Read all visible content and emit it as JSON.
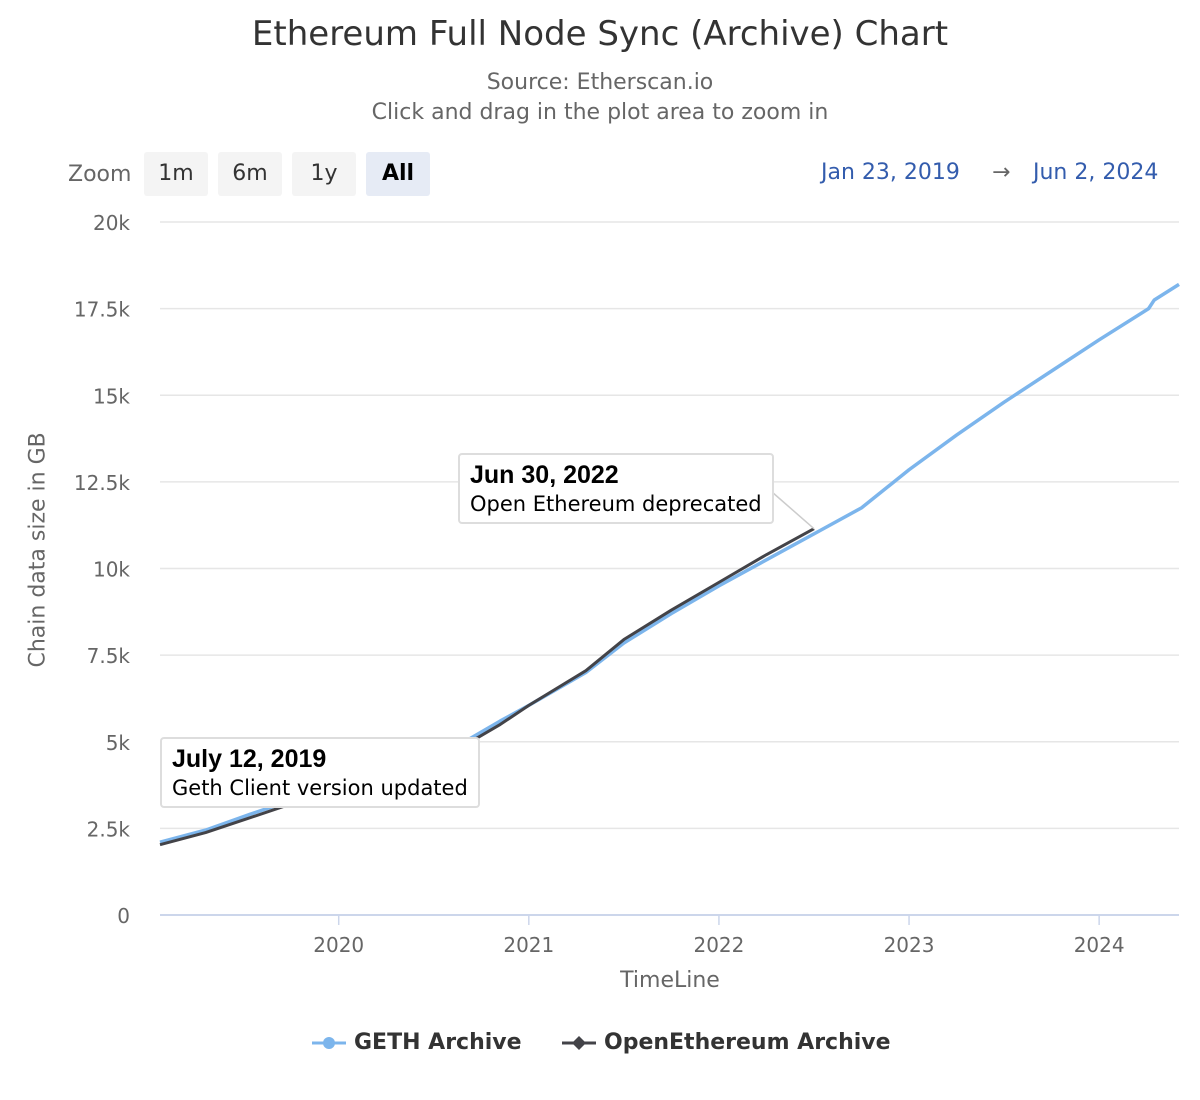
{
  "chart_data": {
    "type": "line",
    "title": "Ethereum Full Node Sync (Archive) Chart",
    "subtitle": "Source: Etherscan.io",
    "hint": "Click and drag in the plot area to zoom in",
    "xlabel": "TimeLine",
    "ylabel": "Chain data size in GB",
    "xlim": [
      2019.06,
      2024.42
    ],
    "ylim": [
      0,
      20000
    ],
    "x_ticks": [
      {
        "v": 2020,
        "label": "2020"
      },
      {
        "v": 2021,
        "label": "2021"
      },
      {
        "v": 2022,
        "label": "2022"
      },
      {
        "v": 2023,
        "label": "2023"
      },
      {
        "v": 2024,
        "label": "2024"
      }
    ],
    "y_ticks": [
      {
        "v": 0,
        "label": "0"
      },
      {
        "v": 2500,
        "label": "2.5k"
      },
      {
        "v": 5000,
        "label": "5k"
      },
      {
        "v": 7500,
        "label": "7.5k"
      },
      {
        "v": 10000,
        "label": "10k"
      },
      {
        "v": 12500,
        "label": "12.5k"
      },
      {
        "v": 15000,
        "label": "15k"
      },
      {
        "v": 17500,
        "label": "17.5k"
      },
      {
        "v": 20000,
        "label": "20k"
      }
    ],
    "grid": true,
    "legend_position": "bottom",
    "series": [
      {
        "name": "GETH Archive",
        "color": "#7cb5ec",
        "points": [
          [
            2019.06,
            2100
          ],
          [
            2019.3,
            2450
          ],
          [
            2019.53,
            2900
          ],
          [
            2019.8,
            3400
          ],
          [
            2020.0,
            3750
          ],
          [
            2020.3,
            4200
          ],
          [
            2020.6,
            4800
          ],
          [
            2020.85,
            5600
          ],
          [
            2021.0,
            6050
          ],
          [
            2021.3,
            7000
          ],
          [
            2021.5,
            7850
          ],
          [
            2021.75,
            8700
          ],
          [
            2022.0,
            9500
          ],
          [
            2022.25,
            10250
          ],
          [
            2022.5,
            11000
          ],
          [
            2022.75,
            11750
          ],
          [
            2023.0,
            12850
          ],
          [
            2023.25,
            13850
          ],
          [
            2023.5,
            14800
          ],
          [
            2023.75,
            15700
          ],
          [
            2024.0,
            16600
          ],
          [
            2024.26,
            17500
          ],
          [
            2024.29,
            17750
          ],
          [
            2024.42,
            18200
          ]
        ]
      },
      {
        "name": "OpenEthereum Archive",
        "color": "#434348",
        "points": [
          [
            2019.06,
            2030
          ],
          [
            2019.3,
            2380
          ],
          [
            2019.53,
            2800
          ],
          [
            2019.8,
            3300
          ],
          [
            2020.0,
            3650
          ],
          [
            2020.3,
            4100
          ],
          [
            2020.6,
            4700
          ],
          [
            2020.85,
            5500
          ],
          [
            2021.0,
            6050
          ],
          [
            2021.3,
            7050
          ],
          [
            2021.5,
            7950
          ],
          [
            2021.75,
            8800
          ],
          [
            2022.0,
            9600
          ],
          [
            2022.25,
            10400
          ],
          [
            2022.5,
            11150
          ]
        ]
      }
    ],
    "annotations": [
      {
        "date": "July 12, 2019",
        "text": "Geth Client version updated",
        "x": 2019.53
      },
      {
        "date": "Jun 30, 2022",
        "text": "Open Ethereum deprecated",
        "x": 2022.5
      }
    ]
  },
  "zoom": {
    "label": "Zoom",
    "buttons": [
      "1m",
      "6m",
      "1y",
      "All"
    ],
    "selected": "All"
  },
  "range": {
    "from": "Jan 23, 2019",
    "arrow": "→",
    "to": "Jun 2, 2024"
  }
}
